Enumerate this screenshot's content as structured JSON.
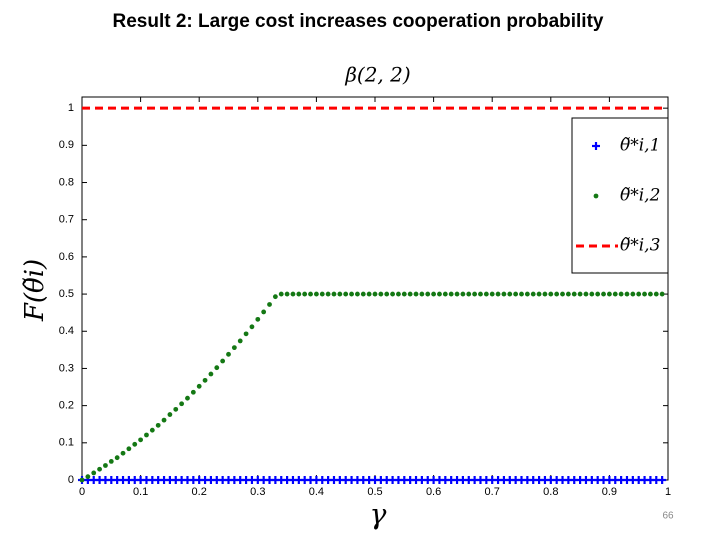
{
  "header": {
    "title": "Result 2: Large cost increases cooperation probability"
  },
  "page_number": "66",
  "chart_data": {
    "type": "line",
    "title": "β(2, 2)",
    "x_label": "γ",
    "y_label": "F(θ̃i)",
    "xlim": [
      0,
      1
    ],
    "ylim": [
      0,
      1.03
    ],
    "xticks": [
      0,
      0.1,
      0.2,
      0.3,
      0.4,
      0.5,
      0.6,
      0.7,
      0.8,
      0.9,
      1
    ],
    "yticks": [
      0,
      0.1,
      0.2,
      0.3,
      0.4,
      0.5,
      0.6,
      0.7,
      0.8,
      0.9,
      1
    ],
    "grid": false,
    "legend": "upper right",
    "x": [
      0,
      0.01,
      0.02,
      0.03,
      0.04,
      0.05,
      0.06,
      0.07,
      0.08,
      0.09,
      0.1,
      0.11,
      0.12,
      0.13,
      0.14,
      0.15,
      0.16,
      0.17,
      0.18,
      0.19,
      0.2,
      0.21,
      0.22,
      0.23,
      0.24,
      0.25,
      0.26,
      0.27,
      0.28,
      0.29,
      0.3,
      0.31,
      0.32,
      0.33,
      0.34,
      0.35,
      0.36,
      0.37,
      0.38,
      0.39,
      0.4,
      0.41,
      0.42,
      0.43,
      0.44,
      0.45,
      0.46,
      0.47,
      0.48,
      0.49,
      0.5,
      0.51,
      0.52,
      0.53,
      0.54,
      0.55,
      0.56,
      0.57,
      0.58,
      0.59,
      0.6,
      0.61,
      0.62,
      0.63,
      0.64,
      0.65,
      0.66,
      0.67,
      0.68,
      0.69,
      0.7,
      0.71,
      0.72,
      0.73,
      0.74,
      0.75,
      0.76,
      0.77,
      0.78,
      0.79,
      0.8,
      0.81,
      0.82,
      0.83,
      0.84,
      0.85,
      0.86,
      0.87,
      0.88,
      0.89,
      0.9,
      0.91,
      0.92,
      0.93,
      0.94,
      0.95,
      0.96,
      0.97,
      0.98,
      0.99
    ],
    "series": [
      {
        "name": "θ̃*i,1",
        "color": "#0000ff",
        "style": "plus",
        "values": [
          0,
          0,
          0,
          0,
          0,
          0,
          0,
          0,
          0,
          0,
          0,
          0,
          0,
          0,
          0,
          0,
          0,
          0,
          0,
          0,
          0,
          0,
          0,
          0,
          0,
          0,
          0,
          0,
          0,
          0,
          0,
          0,
          0,
          0,
          0,
          0,
          0,
          0,
          0,
          0,
          0,
          0,
          0,
          0,
          0,
          0,
          0,
          0,
          0,
          0,
          0,
          0,
          0,
          0,
          0,
          0,
          0,
          0,
          0,
          0,
          0,
          0,
          0,
          0,
          0,
          0,
          0,
          0,
          0,
          0,
          0,
          0,
          0,
          0,
          0,
          0,
          0,
          0,
          0,
          0,
          0,
          0,
          0,
          0,
          0,
          0,
          0,
          0,
          0,
          0,
          0,
          0,
          0,
          0,
          0,
          0,
          0,
          0,
          0,
          0
        ]
      },
      {
        "name": "θ̃*i,2",
        "color": "#147814",
        "style": "dot",
        "values": [
          0,
          0.009,
          0.019,
          0.029,
          0.039,
          0.05,
          0.06,
          0.072,
          0.084,
          0.096,
          0.108,
          0.121,
          0.134,
          0.147,
          0.161,
          0.176,
          0.19,
          0.205,
          0.22,
          0.236,
          0.252,
          0.268,
          0.285,
          0.302,
          0.32,
          0.338,
          0.356,
          0.374,
          0.393,
          0.412,
          0.432,
          0.452,
          0.472,
          0.493,
          0.5,
          0.5,
          0.5,
          0.5,
          0.5,
          0.5,
          0.5,
          0.5,
          0.5,
          0.5,
          0.5,
          0.5,
          0.5,
          0.5,
          0.5,
          0.5,
          0.5,
          0.5,
          0.5,
          0.5,
          0.5,
          0.5,
          0.5,
          0.5,
          0.5,
          0.5,
          0.5,
          0.5,
          0.5,
          0.5,
          0.5,
          0.5,
          0.5,
          0.5,
          0.5,
          0.5,
          0.5,
          0.5,
          0.5,
          0.5,
          0.5,
          0.5,
          0.5,
          0.5,
          0.5,
          0.5,
          0.5,
          0.5,
          0.5,
          0.5,
          0.5,
          0.5,
          0.5,
          0.5,
          0.5,
          0.5,
          0.5,
          0.5,
          0.5,
          0.5,
          0.5,
          0.5,
          0.5,
          0.5,
          0.5,
          0.5
        ]
      },
      {
        "name": "θ̃*i,3",
        "color": "#ff0000",
        "style": "dashed",
        "values": [
          1,
          1,
          1,
          1,
          1,
          1,
          1,
          1,
          1,
          1,
          1,
          1,
          1,
          1,
          1,
          1,
          1,
          1,
          1,
          1,
          1,
          1,
          1,
          1,
          1,
          1,
          1,
          1,
          1,
          1,
          1,
          1,
          1,
          1,
          1,
          1,
          1,
          1,
          1,
          1,
          1,
          1,
          1,
          1,
          1,
          1,
          1,
          1,
          1,
          1,
          1,
          1,
          1,
          1,
          1,
          1,
          1,
          1,
          1,
          1,
          1,
          1,
          1,
          1,
          1,
          1,
          1,
          1,
          1,
          1,
          1,
          1,
          1,
          1,
          1,
          1,
          1,
          1,
          1,
          1,
          1,
          1,
          1,
          1,
          1,
          1,
          1,
          1,
          1,
          1,
          1,
          1,
          1,
          1,
          1,
          1,
          1,
          1,
          1,
          1
        ]
      }
    ]
  }
}
